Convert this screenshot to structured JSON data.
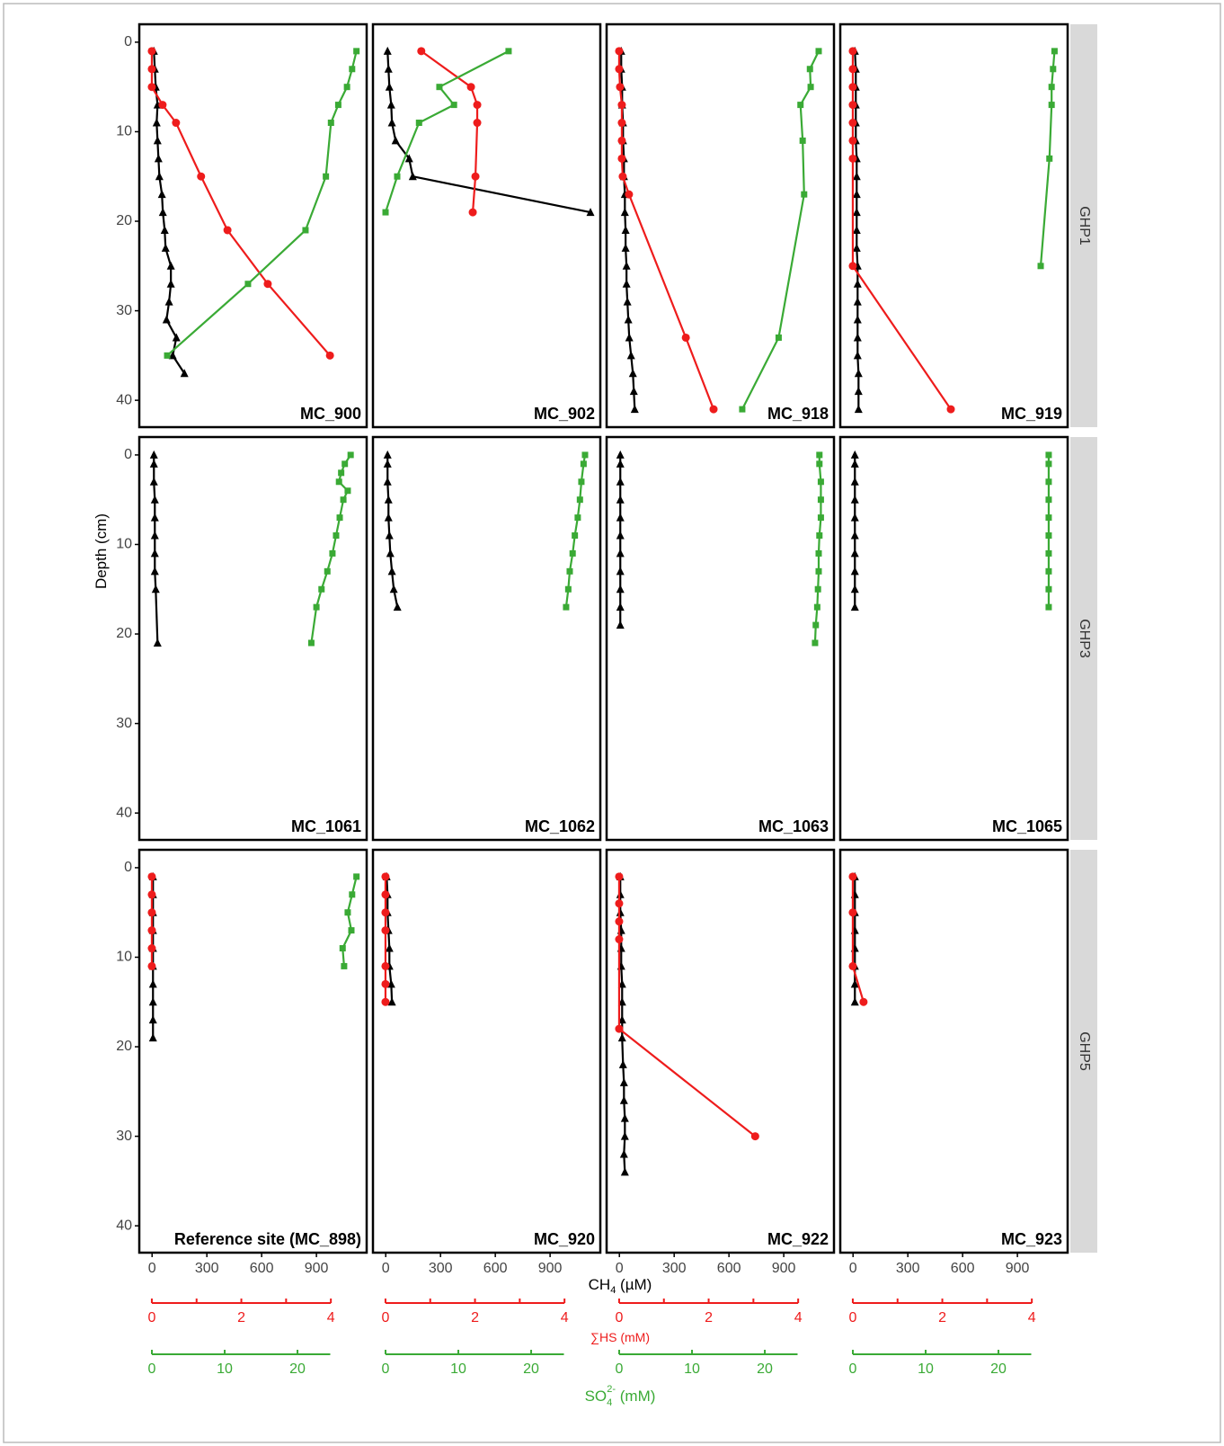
{
  "chart_data": {
    "type": "line",
    "y_label": "Depth (cm)",
    "ch4_label": {
      "main": "CH",
      "sub": "4",
      "rest": " (µM)"
    },
    "hs_label": "∑HS (mM)",
    "so4_label": {
      "main": "SO",
      "sub": "4",
      "sup": "2-",
      "rest": " (mM)"
    },
    "ylim": [
      -2,
      43
    ],
    "yticks": [
      0,
      10,
      20,
      30,
      40
    ],
    "xlim": [
      -70,
      1175
    ],
    "xticks": [
      0,
      300,
      600,
      900
    ],
    "hs_xlim": [
      -0.28,
      4.8
    ],
    "hs_axis": [
      0,
      4
    ],
    "hs_xticks": [
      0,
      2,
      4
    ],
    "hs_minor_ticks": [
      1,
      3
    ],
    "so4_xlim": [
      -1.73,
      29.5
    ],
    "so4_axis": [
      0,
      24.5
    ],
    "so4_xticks": [
      0,
      10,
      20
    ],
    "colors": {
      "ch4": "#000000",
      "hs": "#ee1c1c",
      "so4": "#3aaa35"
    },
    "facets": [
      "GHP1",
      "GHP3",
      "GHP5"
    ],
    "panels": [
      {
        "title": "MC_900",
        "series": [
          {
            "axis": "ch4",
            "depth": [
              1,
              3,
              5,
              7,
              9,
              11,
              13,
              15,
              17,
              19,
              21,
              23,
              25,
              27,
              29,
              31,
              33,
              35,
              37
            ],
            "values": [
              10,
              15,
              20,
              30,
              25,
              30,
              35,
              40,
              54,
              59,
              69,
              74,
              103,
              103,
              93,
              79,
              133,
              113,
              177
            ]
          },
          {
            "axis": "hs",
            "depth": [
              1,
              3,
              5,
              7,
              9,
              15,
              21,
              27,
              35
            ],
            "values": [
              0,
              0,
              0,
              0.24,
              0.54,
              1.1,
              1.69,
              2.59,
              3.98
            ]
          },
          {
            "axis": "so4",
            "depth": [
              1,
              3,
              5,
              7,
              9,
              15,
              21,
              27,
              35
            ],
            "values": [
              28.1,
              27.5,
              26.8,
              25.6,
              24.6,
              23.9,
              21.1,
              13.2,
              2.1
            ]
          }
        ]
      },
      {
        "title": "MC_902",
        "series": [
          {
            "axis": "ch4",
            "depth": [
              1,
              3,
              5,
              7,
              9,
              11,
              13,
              15,
              19
            ],
            "values": [
              10,
              15,
              20,
              30,
              34,
              54,
              128,
              148,
              1121
            ]
          },
          {
            "axis": "hs",
            "depth": [
              1,
              5,
              7,
              9,
              15,
              19
            ],
            "values": [
              0.8,
              1.91,
              2.05,
              2.05,
              2.01,
              1.95
            ]
          },
          {
            "axis": "so4",
            "depth": [
              1,
              5,
              7,
              9,
              15,
              19
            ],
            "values": [
              16.9,
              7.4,
              9.4,
              4.6,
              1.6,
              0
            ]
          }
        ]
      },
      {
        "title": "MC_918",
        "series": [
          {
            "axis": "ch4",
            "depth": [
              1,
              3,
              5,
              7,
              9,
              11,
              13,
              15,
              17,
              19,
              21,
              23,
              25,
              27,
              29,
              31,
              33,
              35,
              37,
              39,
              41
            ],
            "values": [
              10,
              10,
              15,
              15,
              20,
              20,
              25,
              25,
              30,
              30,
              34,
              34,
              39,
              39,
              44,
              49,
              54,
              64,
              74,
              79,
              84
            ]
          },
          {
            "axis": "hs",
            "depth": [
              1,
              3,
              5,
              7,
              9,
              11,
              13,
              15,
              17,
              33,
              41
            ],
            "values": [
              0,
              0,
              0.02,
              0.06,
              0.06,
              0.06,
              0.06,
              0.08,
              0.22,
              1.49,
              2.11
            ]
          },
          {
            "axis": "so4",
            "depth": [
              1,
              3,
              5,
              7,
              11,
              17,
              33,
              41
            ],
            "values": [
              27.4,
              26.2,
              26.3,
              24.9,
              25.2,
              25.4,
              21.9,
              16.9
            ]
          }
        ]
      },
      {
        "title": "MC_919",
        "series": [
          {
            "axis": "ch4",
            "depth": [
              1,
              3,
              5,
              7,
              9,
              11,
              13,
              15,
              17,
              19,
              21,
              23,
              25,
              27,
              29,
              31,
              33,
              35,
              37,
              39,
              41
            ],
            "values": [
              10,
              15,
              15,
              15,
              15,
              15,
              20,
              20,
              20,
              20,
              20,
              20,
              25,
              25,
              25,
              25,
              25,
              25,
              30,
              30,
              30
            ]
          },
          {
            "axis": "hs",
            "depth": [
              1,
              3,
              5,
              7,
              9,
              11,
              13,
              25,
              41
            ],
            "values": [
              0,
              0,
              0,
              0,
              0,
              0,
              0,
              0,
              2.19
            ]
          },
          {
            "axis": "so4",
            "depth": [
              1,
              3,
              5,
              7,
              13,
              25
            ],
            "values": [
              27.7,
              27.5,
              27.3,
              27.3,
              27,
              25.8
            ]
          }
        ]
      },
      {
        "title": "MC_1061",
        "series": [
          {
            "axis": "ch4",
            "depth": [
              0,
              1,
              3,
              5,
              7,
              9,
              11,
              13,
              15,
              21
            ],
            "values": [
              10,
              10,
              10,
              15,
              15,
              15,
              15,
              15,
              20,
              30
            ]
          },
          {
            "axis": "so4",
            "depth": [
              0,
              1,
              2,
              3,
              4,
              5,
              7,
              9,
              11,
              13,
              15,
              17,
              21
            ],
            "values": [
              27.3,
              26.5,
              26,
              25.7,
              26.9,
              26.3,
              25.8,
              25.3,
              24.8,
              24.1,
              23.3,
              22.6,
              21.9
            ]
          }
        ]
      },
      {
        "title": "MC_1062",
        "series": [
          {
            "axis": "ch4",
            "depth": [
              0,
              1,
              3,
              5,
              7,
              9,
              11,
              13,
              15,
              17
            ],
            "values": [
              10,
              10,
              10,
              15,
              15,
              20,
              25,
              34,
              44,
              64
            ]
          },
          {
            "axis": "so4",
            "depth": [
              0,
              1,
              3,
              5,
              7,
              9,
              11,
              13,
              15,
              17
            ],
            "values": [
              27.4,
              27.2,
              26.9,
              26.7,
              26.4,
              26,
              25.7,
              25.3,
              25.1,
              24.8
            ]
          }
        ]
      },
      {
        "title": "MC_1063",
        "series": [
          {
            "axis": "ch4",
            "depth": [
              0,
              1,
              3,
              5,
              7,
              9,
              11,
              13,
              15,
              17,
              19
            ],
            "values": [
              5,
              5,
              5,
              5,
              5,
              5,
              5,
              5,
              5,
              5,
              5
            ]
          },
          {
            "axis": "so4",
            "depth": [
              0,
              1,
              3,
              5,
              7,
              9,
              11,
              13,
              15,
              17,
              19,
              21
            ],
            "values": [
              27.5,
              27.5,
              27.7,
              27.7,
              27.7,
              27.5,
              27.4,
              27.4,
              27.3,
              27.2,
              27,
              26.9
            ]
          }
        ]
      },
      {
        "title": "MC_1065",
        "series": [
          {
            "axis": "ch4",
            "depth": [
              0,
              1,
              3,
              5,
              7,
              9,
              11,
              13,
              15,
              17
            ],
            "values": [
              10,
              10,
              10,
              10,
              10,
              10,
              10,
              10,
              10,
              10
            ]
          },
          {
            "axis": "so4",
            "depth": [
              0,
              1,
              3,
              5,
              7,
              9,
              11,
              13,
              15,
              17
            ],
            "values": [
              26.9,
              26.9,
              26.9,
              26.9,
              26.9,
              26.9,
              26.9,
              26.9,
              26.9,
              26.9
            ]
          }
        ]
      },
      {
        "title": "Reference site (MC_898)",
        "series": [
          {
            "axis": "ch4",
            "depth": [
              1,
              3,
              5,
              7,
              9,
              11,
              13,
              15,
              17,
              19
            ],
            "values": [
              5,
              5,
              5,
              5,
              5,
              5,
              5,
              5,
              5,
              5
            ]
          },
          {
            "axis": "hs",
            "depth": [
              1,
              3,
              5,
              7,
              9,
              11
            ],
            "values": [
              0,
              0,
              0,
              0,
              0,
              0
            ]
          },
          {
            "axis": "so4",
            "depth": [
              1,
              3,
              5,
              7,
              9,
              11
            ],
            "values": [
              28.1,
              27.5,
              26.9,
              27.4,
              26.2,
              26.4
            ]
          }
        ]
      },
      {
        "title": "MC_920",
        "series": [
          {
            "axis": "ch4",
            "depth": [
              1,
              3,
              5,
              7,
              9,
              11,
              13,
              15
            ],
            "values": [
              5,
              10,
              10,
              15,
              20,
              20,
              30,
              34
            ]
          },
          {
            "axis": "hs",
            "depth": [
              1,
              3,
              5,
              7,
              11,
              13,
              15
            ],
            "values": [
              0,
              0,
              0,
              0,
              0,
              0,
              0
            ]
          }
        ]
      },
      {
        "title": "MC_922",
        "series": [
          {
            "axis": "ch4",
            "depth": [
              1,
              3,
              5,
              7,
              9,
              11,
              13,
              15,
              17,
              19,
              22,
              24,
              26,
              28,
              30,
              32,
              34
            ],
            "values": [
              5,
              5,
              5,
              10,
              10,
              10,
              15,
              15,
              15,
              15,
              20,
              25,
              25,
              30,
              30,
              25,
              30
            ]
          },
          {
            "axis": "hs",
            "depth": [
              1,
              4,
              6,
              8,
              18,
              30
            ],
            "values": [
              0,
              0,
              0,
              0,
              0,
              3.04
            ]
          }
        ]
      },
      {
        "title": "MC_923",
        "series": [
          {
            "axis": "ch4",
            "depth": [
              1,
              3,
              5,
              7,
              9,
              11,
              13,
              15
            ],
            "values": [
              10,
              10,
              10,
              10,
              10,
              10,
              10,
              10
            ]
          },
          {
            "axis": "hs",
            "depth": [
              1,
              5,
              11,
              15
            ],
            "values": [
              0,
              0,
              0,
              0.24
            ]
          }
        ]
      }
    ]
  }
}
